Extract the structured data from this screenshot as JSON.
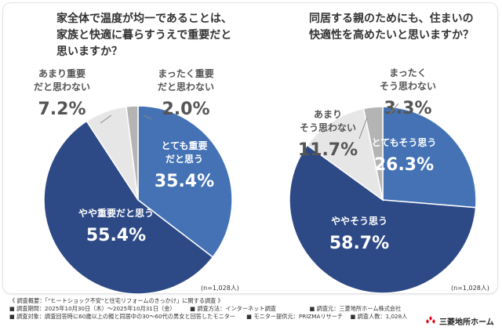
{
  "colors": {
    "dark_blue": "#2e4a86",
    "mid_blue": "#4472b5",
    "light_gray": "#e6e6e6",
    "mid_gray": "#b4b4b4",
    "logo_red": "#e60012"
  },
  "chart_data": [
    {
      "type": "pie",
      "title": "家全体で温度が均一であることは、家族と快適に暮らすうえで重要だと思いますか？",
      "title_lines": [
        "家全体で温度が均一であることは、",
        "家族と快適に暮らすうえで重要だと",
        "思いますか？"
      ],
      "slices": [
        {
          "label": "とても重要だと思う",
          "label_lines": [
            "とても重要",
            "だと思う"
          ],
          "value": 35.4,
          "value_text": "35.4%",
          "color": "#4472b5"
        },
        {
          "label": "やや重要だと思う",
          "label_lines": [
            "やや重要だと思う"
          ],
          "value": 55.4,
          "value_text": "55.4%",
          "color": "#2e4a86"
        },
        {
          "label": "あまり重要だと思わない",
          "label_lines": [
            "あまり重要",
            "だと思わない"
          ],
          "value": 7.2,
          "value_text": "7.2%",
          "color": "#e6e6e6"
        },
        {
          "label": "まったく重要だと思わない",
          "label_lines": [
            "まったく重要",
            "だと思わない"
          ],
          "value": 2.0,
          "value_text": "2.0%",
          "color": "#b4b4b4"
        }
      ],
      "n_label": "(n=1,028人)"
    },
    {
      "type": "pie",
      "title": "同居する親のためにも、住まいの快適性を高めたいと思いますか？",
      "title_lines": [
        "同居する親のためにも、住まいの",
        "快適性を高めたいと思いますか？"
      ],
      "slices": [
        {
          "label": "とてもそう思う",
          "label_lines": [
            "とてもそう思う"
          ],
          "value": 26.3,
          "value_text": "26.3%",
          "color": "#4472b5"
        },
        {
          "label": "ややそう思う",
          "label_lines": [
            "ややそう思う"
          ],
          "value": 58.7,
          "value_text": "58.7%",
          "color": "#2e4a86"
        },
        {
          "label": "あまりそう思わない",
          "label_lines": [
            "あまり",
            "そう思わない"
          ],
          "value": 11.7,
          "value_text": "11.7%",
          "color": "#e6e6e6"
        },
        {
          "label": "まったくそう思わない",
          "label_lines": [
            "まったく",
            "そう思わない"
          ],
          "value": 3.3,
          "value_text": "3.3%",
          "color": "#b4b4b4"
        }
      ],
      "n_label": "(n=1,028人)"
    }
  ],
  "footer": {
    "line1": "《 調査概要：「\"ヒートショック不安\"と住宅リフォームのきっかけ」に関する調査 》",
    "period": "■ 調査期間：2025年10月30日（木）～2025年10月31日（金）",
    "method": "■ 調査方法：インターネット調査",
    "org": "■ 調査元：三菱地所ホーム株式会社",
    "target": "■ 調査対象：調査回答時に60歳以上の親と同居中の30～60代の男女と回答したモニター",
    "provider": "■ モニター提供元：PRIZMAリサーチ",
    "count": "■ 調査人数：1,028人"
  },
  "logo": {
    "text": "三菱地所ホーム",
    "icon": "mitsubishi-diamonds-icon"
  }
}
